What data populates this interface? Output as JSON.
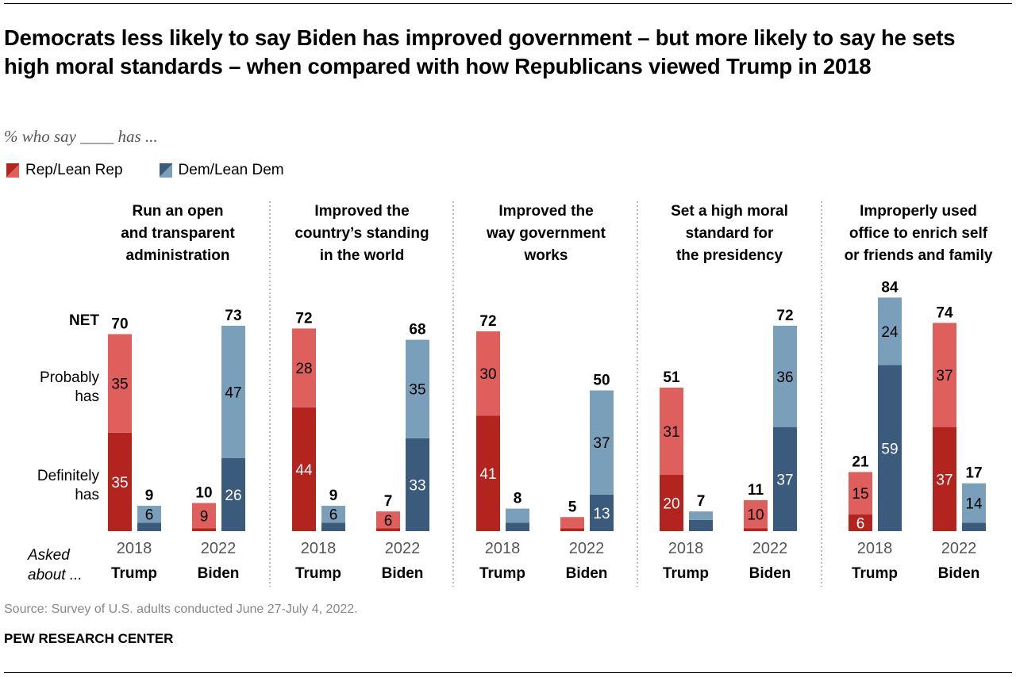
{
  "title": "Democrats less likely to say Biden has improved government – but more likely to say he sets high moral standards – when compared with how Republicans viewed Trump in 2018",
  "subtitle": "% who say ____ has ...",
  "legend": [
    {
      "label": "Rep/Lean Rep",
      "color_dark": "#b3241e",
      "color_light": "#df5f5c"
    },
    {
      "label": "Dem/Lean Dem",
      "color_dark": "#3b5b7c",
      "color_light": "#7a9fbb"
    }
  ],
  "row_labels": {
    "net": "NET",
    "probably": "Probably has",
    "definitely": "Definitely has",
    "asked_about": "Asked about ..."
  },
  "source": "Source: Survey of U.S. adults conducted June 27-July 4, 2022.",
  "org": "PEW RESEARCH CENTER",
  "chart_data": {
    "type": "bar",
    "stacked": true,
    "title": "Democrats less likely to say Biden has improved government – but more likely to say he sets high moral standards – when compared with how Republicans viewed Trump in 2018",
    "subtitle": "% who say ____ has ...",
    "stack_segments": [
      "Definitely has",
      "Probably has"
    ],
    "series_names": [
      "Rep/Lean Rep",
      "Dem/Lean Dem"
    ],
    "colors": {
      "rep_definitely": "#b3241e",
      "rep_probably": "#df5f5c",
      "dem_definitely": "#3b5b7c",
      "dem_probably": "#7a9fbb"
    },
    "ylim": [
      0,
      100
    ],
    "grid": false,
    "legend_position": "top-left",
    "panels": [
      {
        "title": [
          "Run an open",
          "and transparent",
          "administration"
        ],
        "groups": [
          {
            "year": "2018",
            "person": "Trump",
            "rep": {
              "definitely": 35,
              "probably": 35,
              "net": 70,
              "labels": [
                "35",
                "35"
              ]
            },
            "dem": {
              "definitely": 3,
              "probably": 6,
              "net": 9,
              "labels": [
                "",
                "6"
              ]
            }
          },
          {
            "year": "2022",
            "person": "Biden",
            "rep": {
              "definitely": 1,
              "probably": 9,
              "net": 10,
              "labels": [
                "",
                "9"
              ]
            },
            "dem": {
              "definitely": 26,
              "probably": 47,
              "net": 73,
              "labels": [
                "26",
                "47"
              ]
            }
          }
        ]
      },
      {
        "title": [
          "Improved the",
          "country’s standing",
          "in the world"
        ],
        "groups": [
          {
            "year": "2018",
            "person": "Trump",
            "rep": {
              "definitely": 44,
              "probably": 28,
              "net": 72,
              "labels": [
                "44",
                "28"
              ]
            },
            "dem": {
              "definitely": 3,
              "probably": 6,
              "net": 9,
              "labels": [
                "",
                "6"
              ]
            }
          },
          {
            "year": "2022",
            "person": "Biden",
            "rep": {
              "definitely": 1,
              "probably": 6,
              "net": 7,
              "labels": [
                "",
                "6"
              ]
            },
            "dem": {
              "definitely": 33,
              "probably": 35,
              "net": 68,
              "labels": [
                "33",
                "35"
              ]
            }
          }
        ]
      },
      {
        "title": [
          "Improved the",
          "way government",
          "works"
        ],
        "groups": [
          {
            "year": "2018",
            "person": "Trump",
            "rep": {
              "definitely": 41,
              "probably": 30,
              "net": 72,
              "labels": [
                "41",
                "30"
              ]
            },
            "dem": {
              "definitely": 3,
              "probably": 5,
              "net": 8,
              "labels": [
                "",
                ""
              ]
            }
          },
          {
            "year": "2022",
            "person": "Biden",
            "rep": {
              "definitely": 1,
              "probably": 4,
              "net": 5,
              "labels": [
                "",
                ""
              ]
            },
            "dem": {
              "definitely": 13,
              "probably": 37,
              "net": 50,
              "labels": [
                "13",
                "37"
              ]
            }
          }
        ]
      },
      {
        "title": [
          "Set a high moral",
          "standard for",
          "the presidency"
        ],
        "groups": [
          {
            "year": "2018",
            "person": "Trump",
            "rep": {
              "definitely": 20,
              "probably": 31,
              "net": 51,
              "labels": [
                "20",
                "31"
              ]
            },
            "dem": {
              "definitely": 4,
              "probably": 3,
              "net": 7,
              "labels": [
                "",
                ""
              ]
            }
          },
          {
            "year": "2022",
            "person": "Biden",
            "rep": {
              "definitely": 1,
              "probably": 10,
              "net": 11,
              "labels": [
                "",
                "10"
              ]
            },
            "dem": {
              "definitely": 37,
              "probably": 36,
              "net": 72,
              "labels": [
                "37",
                "36"
              ]
            }
          }
        ]
      },
      {
        "title": [
          "Improperly used",
          "office to enrich self",
          "or friends and family"
        ],
        "groups": [
          {
            "year": "2018",
            "person": "Trump",
            "rep": {
              "definitely": 6,
              "probably": 15,
              "net": 21,
              "labels": [
                "6",
                "15"
              ]
            },
            "dem": {
              "definitely": 59,
              "probably": 24,
              "net": 84,
              "labels": [
                "59",
                "24"
              ]
            }
          },
          {
            "year": "2022",
            "person": "Biden",
            "rep": {
              "definitely": 37,
              "probably": 37,
              "net": 74,
              "labels": [
                "37",
                "37"
              ]
            },
            "dem": {
              "definitely": 3,
              "probably": 14,
              "net": 17,
              "labels": [
                "",
                "14"
              ]
            }
          }
        ]
      }
    ]
  }
}
